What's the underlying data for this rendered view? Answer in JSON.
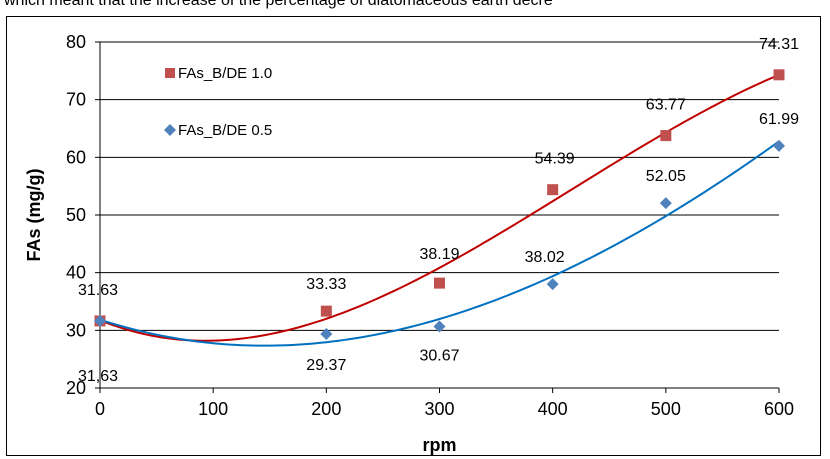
{
  "caption": "which meant that the increase of the percentage of diatomaceous earth decre",
  "chart_data": {
    "type": "scatter",
    "title": "",
    "xlabel": "rpm",
    "ylabel": "FAs (mg/g)",
    "xlim": [
      0,
      600
    ],
    "ylim": [
      20,
      80
    ],
    "x_ticks": [
      "0",
      "100",
      "200",
      "300",
      "400",
      "500",
      "600"
    ],
    "y_ticks": [
      "20",
      "30",
      "40",
      "50",
      "60",
      "70",
      "80"
    ],
    "grid": "horizontal",
    "legend_position": "top-left",
    "series": [
      {
        "name": "FAs_B/DE 1.0",
        "marker": "square",
        "color": "#c0504d",
        "trend_color": "#c00000",
        "x": [
          0,
          200,
          300,
          400,
          500,
          600
        ],
        "y": [
          31.63,
          33.33,
          38.19,
          54.39,
          63.77,
          74.31
        ],
        "labels": [
          "31.63",
          "33.33",
          "38.19",
          "54.39",
          "63.77",
          "74.31"
        ]
      },
      {
        "name": "FAs_B/DE 0.5",
        "marker": "diamond",
        "color": "#4f81bd",
        "trend_color": "#0070c0",
        "x": [
          0,
          200,
          300,
          400,
          500,
          600
        ],
        "y": [
          31.63,
          29.37,
          30.67,
          38.02,
          52.05,
          61.99
        ],
        "labels": [
          "31,63",
          "29.37",
          "30.67",
          "38.02",
          "52.05",
          "61.99"
        ]
      }
    ]
  }
}
